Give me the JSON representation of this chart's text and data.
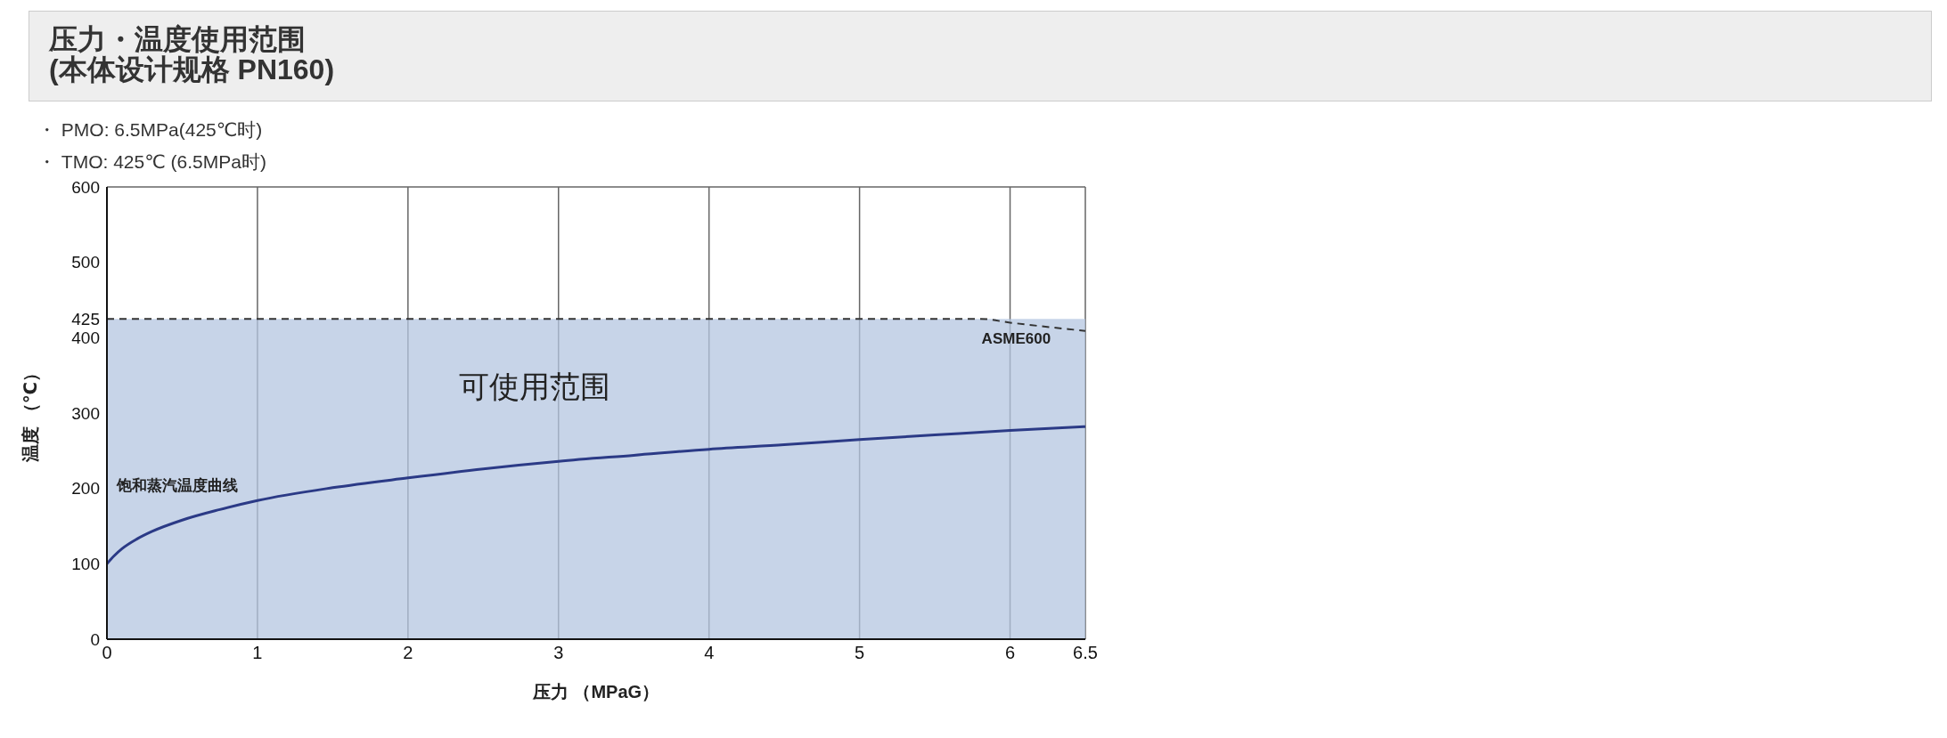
{
  "chart_data": {
    "type": "line",
    "title": "压力・温度使用范围\n(本体设计规格 PN160)",
    "xlabel": "压力 （MPaG）",
    "ylabel": "温度 （℃）",
    "xlim": [
      0,
      6.5
    ],
    "xticks": [
      0,
      1,
      2,
      3,
      4,
      5,
      6,
      6.5
    ],
    "ylim": [
      0,
      600
    ],
    "yticks": [
      0,
      100,
      200,
      300,
      400,
      425,
      500,
      600
    ],
    "grid": true,
    "marker": "none",
    "series": [
      {
        "type": "area",
        "name": "可使用范围",
        "color": "#b4c6e0",
        "x": [
          0,
          6.5
        ],
        "values": [
          425,
          425
        ]
      },
      {
        "name": "ASME600",
        "line_style": "dashed",
        "color": "#333333",
        "x": [
          0,
          5.8,
          6,
          6.5
        ],
        "values": [
          425,
          425,
          420,
          409
        ]
      },
      {
        "name": "饱和蒸汽温度曲线",
        "line_style": "solid",
        "color": "#2b3a86",
        "x": [
          0,
          0.05,
          0.1,
          0.2,
          0.3,
          0.5,
          0.75,
          1,
          1.5,
          2,
          2.5,
          3,
          3.5,
          4,
          4.5,
          5,
          5.5,
          6,
          6.5
        ],
        "values": [
          100,
          111,
          120,
          133,
          143,
          158,
          172,
          184,
          201,
          214,
          226,
          236,
          244,
          252,
          258,
          265,
          271,
          277,
          282
        ]
      }
    ],
    "annotations": [
      "・ PMO: 6.5MPa(425℃时)",
      "・ TMO: 425℃ (6.5MPa时)"
    ]
  }
}
